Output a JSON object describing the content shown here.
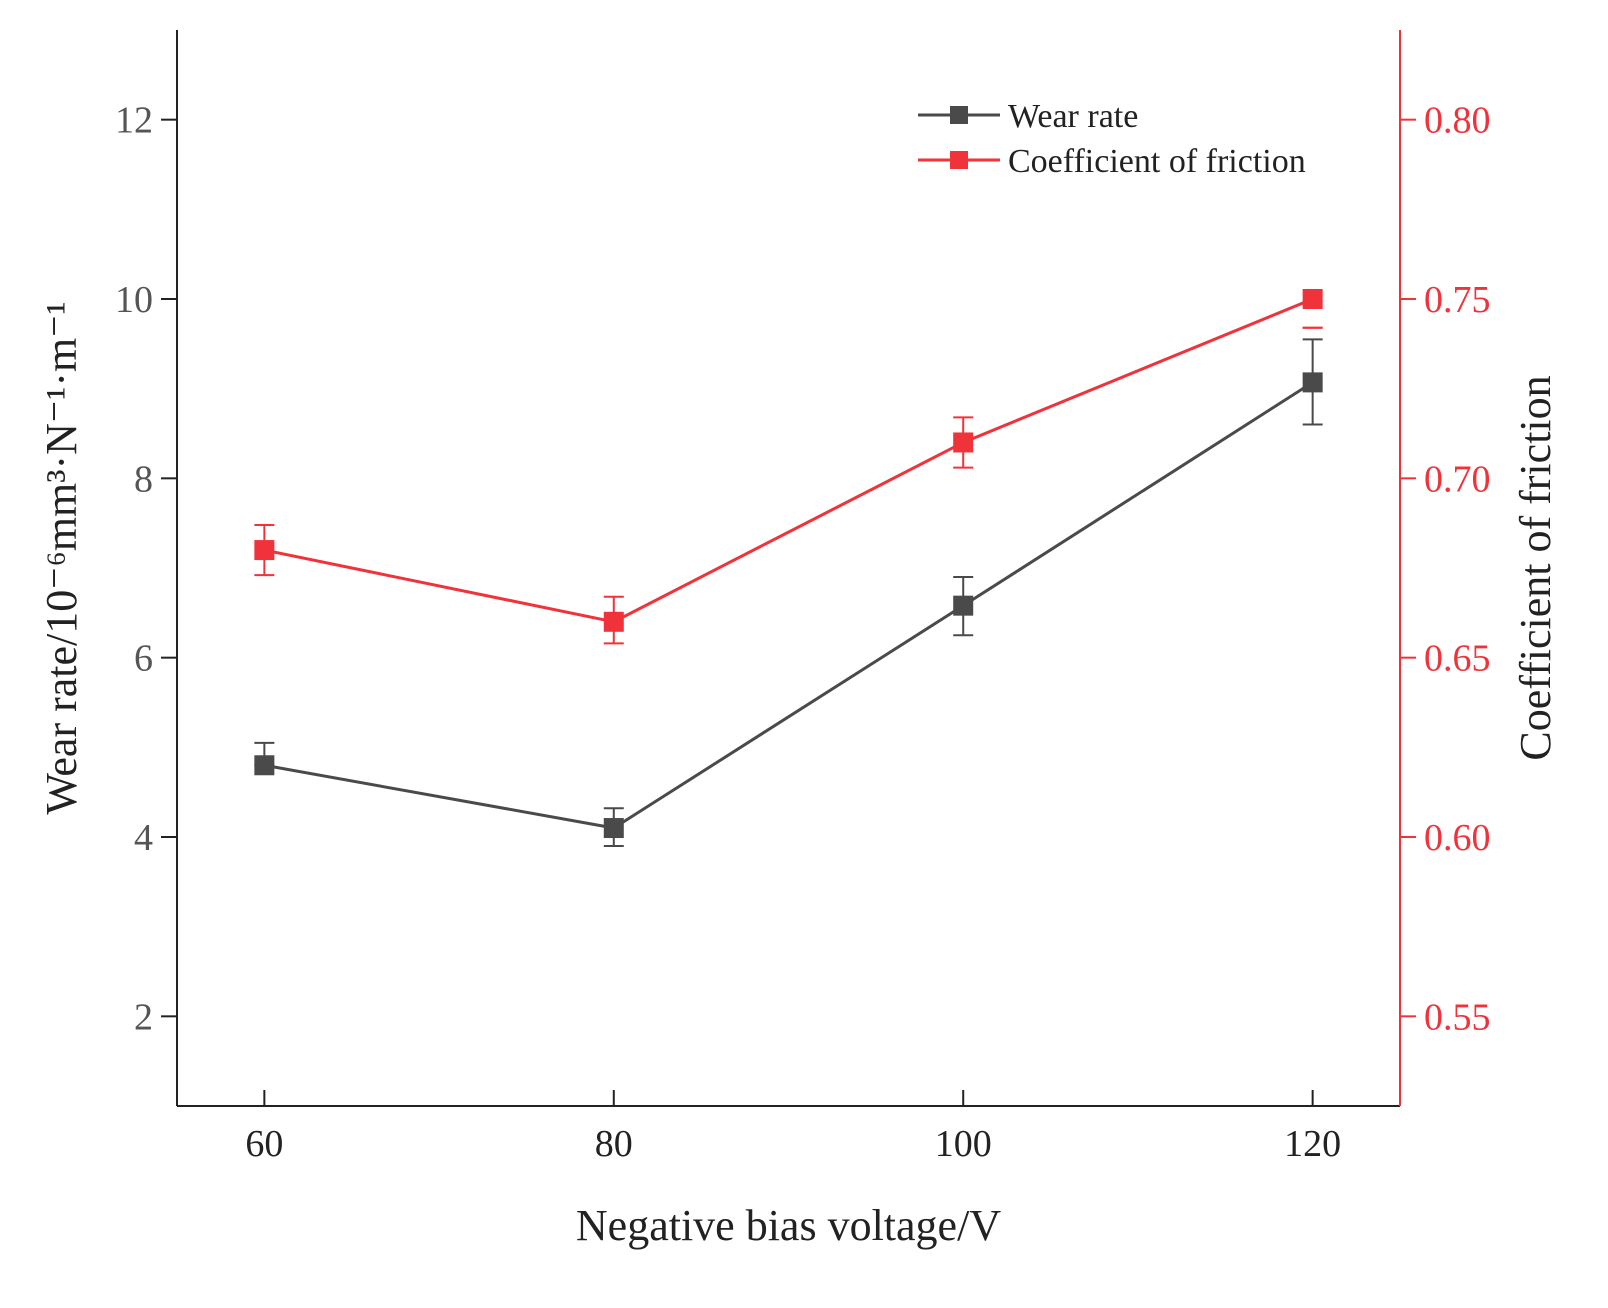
{
  "colors": {
    "series_black": "#4a4a4a",
    "series_red": "#f0333a",
    "axis_left": "#222222",
    "axis_right": "#f0333a"
  },
  "chart_data": {
    "type": "line",
    "x": [
      60,
      80,
      100,
      120
    ],
    "xlabel": "Negative bias voltage/V",
    "ylabel": "Wear rate/10⁻⁶mm³·N⁻¹·m⁻¹",
    "y2label": "Coefficient of friction",
    "xlim": [
      55,
      125
    ],
    "ylim": [
      1,
      13
    ],
    "y2lim": [
      0.525,
      0.825
    ],
    "xticks": [
      "60",
      "80",
      "100",
      "120"
    ],
    "yticks": [
      "2",
      "4",
      "6",
      "8",
      "10",
      "12"
    ],
    "y2ticks": [
      "0.55",
      "0.60",
      "0.65",
      "0.70",
      "0.75",
      "0.80"
    ],
    "legend_position": "top-right",
    "series": [
      {
        "name": "Wear rate",
        "axis": "left",
        "values": [
          4.8,
          4.1,
          6.58,
          9.07
        ],
        "error_upper": [
          5.05,
          4.32,
          6.9,
          9.55
        ],
        "error_lower": [
          4.8,
          3.9,
          6.25,
          8.6
        ]
      },
      {
        "name": "Coefficient of friction",
        "axis": "right",
        "values": [
          0.68,
          0.66,
          0.71,
          0.75
        ],
        "error_upper": [
          0.687,
          0.667,
          0.717,
          0.742
        ],
        "error_lower": [
          0.673,
          0.654,
          0.703,
          0.742
        ]
      }
    ]
  }
}
